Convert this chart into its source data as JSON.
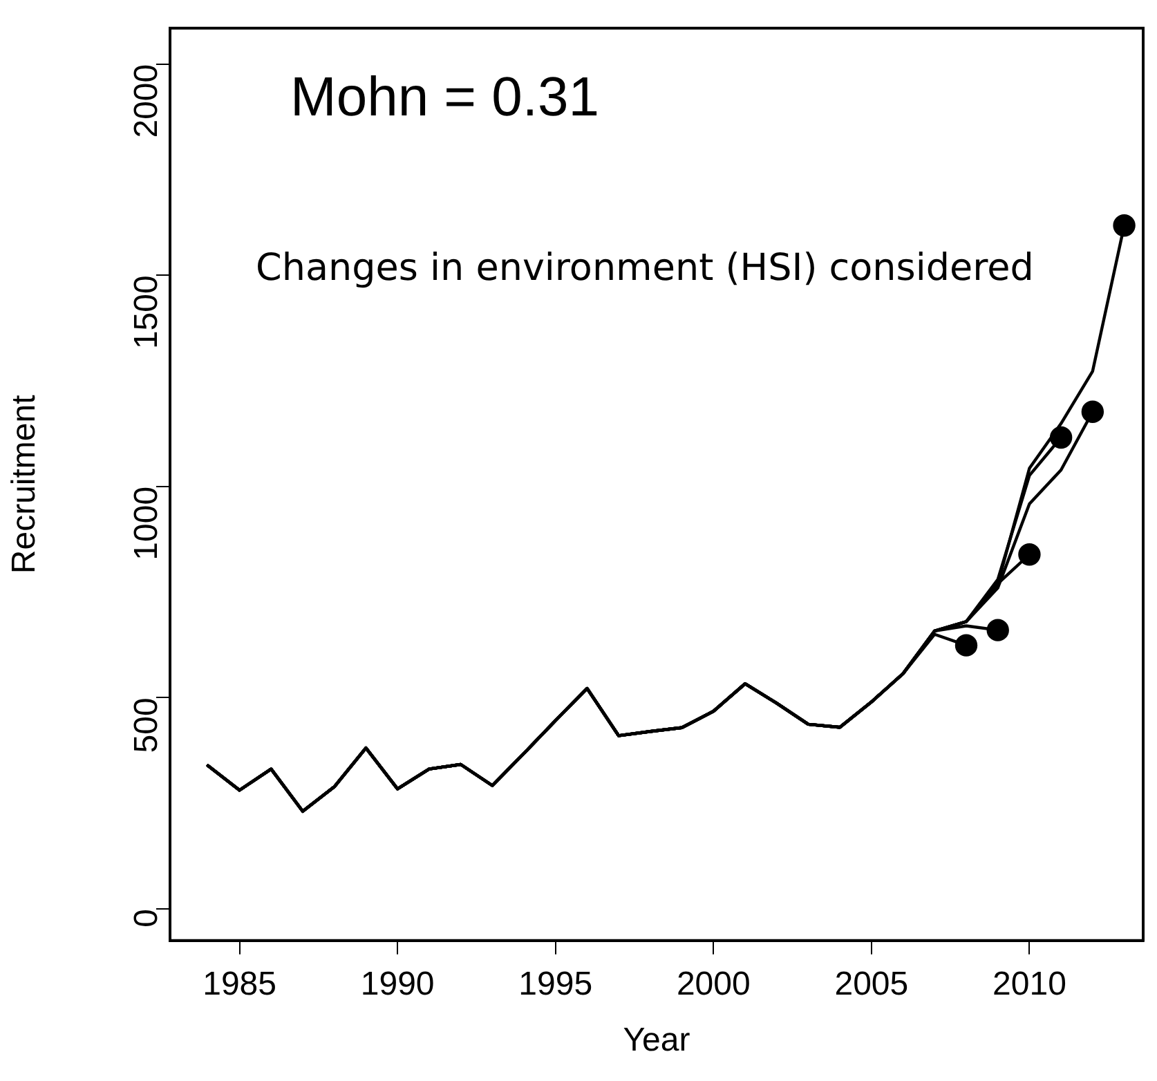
{
  "chart_data": {
    "type": "line",
    "xlabel": "Year",
    "ylabel": "Recruitment",
    "annotations": [
      "Mohn = 0.31",
      "Changes in environment (HSI) considered"
    ],
    "x": [
      1984,
      1985,
      1986,
      1987,
      1988,
      1989,
      1990,
      1991,
      1992,
      1993,
      1994,
      1995,
      1996,
      1997,
      1998,
      1999,
      2000,
      2001,
      2002,
      2003,
      2004,
      2005,
      2006,
      2007,
      2008,
      2009,
      2010,
      2011,
      2012,
      2013
    ],
    "series": [
      {
        "color": "#000000",
        "values": [
          339,
          281,
          331,
          231,
          289,
          381,
          284,
          331,
          342,
          292,
          368,
          446,
          522,
          410,
          420,
          429,
          468,
          533,
          487,
          437,
          430,
          490,
          557,
          650,
          624,
          null,
          null,
          null,
          null,
          null
        ]
      },
      {
        "color": "#000000",
        "values": [
          339,
          281,
          331,
          231,
          289,
          381,
          284,
          331,
          342,
          292,
          368,
          446,
          522,
          410,
          420,
          429,
          468,
          533,
          487,
          437,
          430,
          490,
          557,
          658,
          670,
          660,
          null,
          null,
          null,
          null
        ]
      },
      {
        "color": "#000000",
        "values": [
          339,
          281,
          331,
          231,
          289,
          381,
          284,
          331,
          342,
          292,
          368,
          446,
          522,
          410,
          420,
          429,
          468,
          533,
          487,
          437,
          430,
          490,
          557,
          658,
          680,
          770,
          839,
          null,
          null,
          null
        ]
      },
      {
        "color": "#000000",
        "values": [
          339,
          281,
          331,
          231,
          289,
          381,
          284,
          331,
          342,
          292,
          368,
          446,
          522,
          410,
          420,
          429,
          468,
          533,
          487,
          437,
          430,
          490,
          557,
          658,
          680,
          780,
          1026,
          1116,
          null,
          null
        ]
      },
      {
        "color": "#000000",
        "values": [
          339,
          281,
          331,
          231,
          289,
          381,
          284,
          331,
          342,
          292,
          368,
          446,
          522,
          410,
          420,
          429,
          468,
          533,
          487,
          437,
          430,
          490,
          557,
          658,
          680,
          760,
          959,
          1039,
          1177,
          null
        ]
      },
      {
        "color": "#000000",
        "values": [
          339,
          281,
          331,
          231,
          289,
          381,
          284,
          331,
          342,
          292,
          368,
          446,
          522,
          410,
          420,
          429,
          468,
          533,
          487,
          437,
          430,
          490,
          557,
          658,
          680,
          770,
          1043,
          1149,
          1273,
          1618
        ]
      },
      {
        "type": "scatter",
        "color": "#000000",
        "marker": "circle",
        "x": [
          2008,
          2009,
          2010,
          2011,
          2012,
          2013
        ],
        "values": [
          624,
          660,
          839,
          1116,
          1177,
          1618
        ]
      }
    ],
    "marker": "none",
    "line_style": "solid",
    "grid": false,
    "legend": false,
    "xlim": [
      1982.8,
      2013.6
    ],
    "xticks": [
      1985,
      1990,
      1995,
      2000,
      2005,
      2010
    ],
    "ylim": [
      -75,
      2085
    ],
    "yticks": [
      0,
      500,
      1000,
      1500,
      2000
    ]
  }
}
